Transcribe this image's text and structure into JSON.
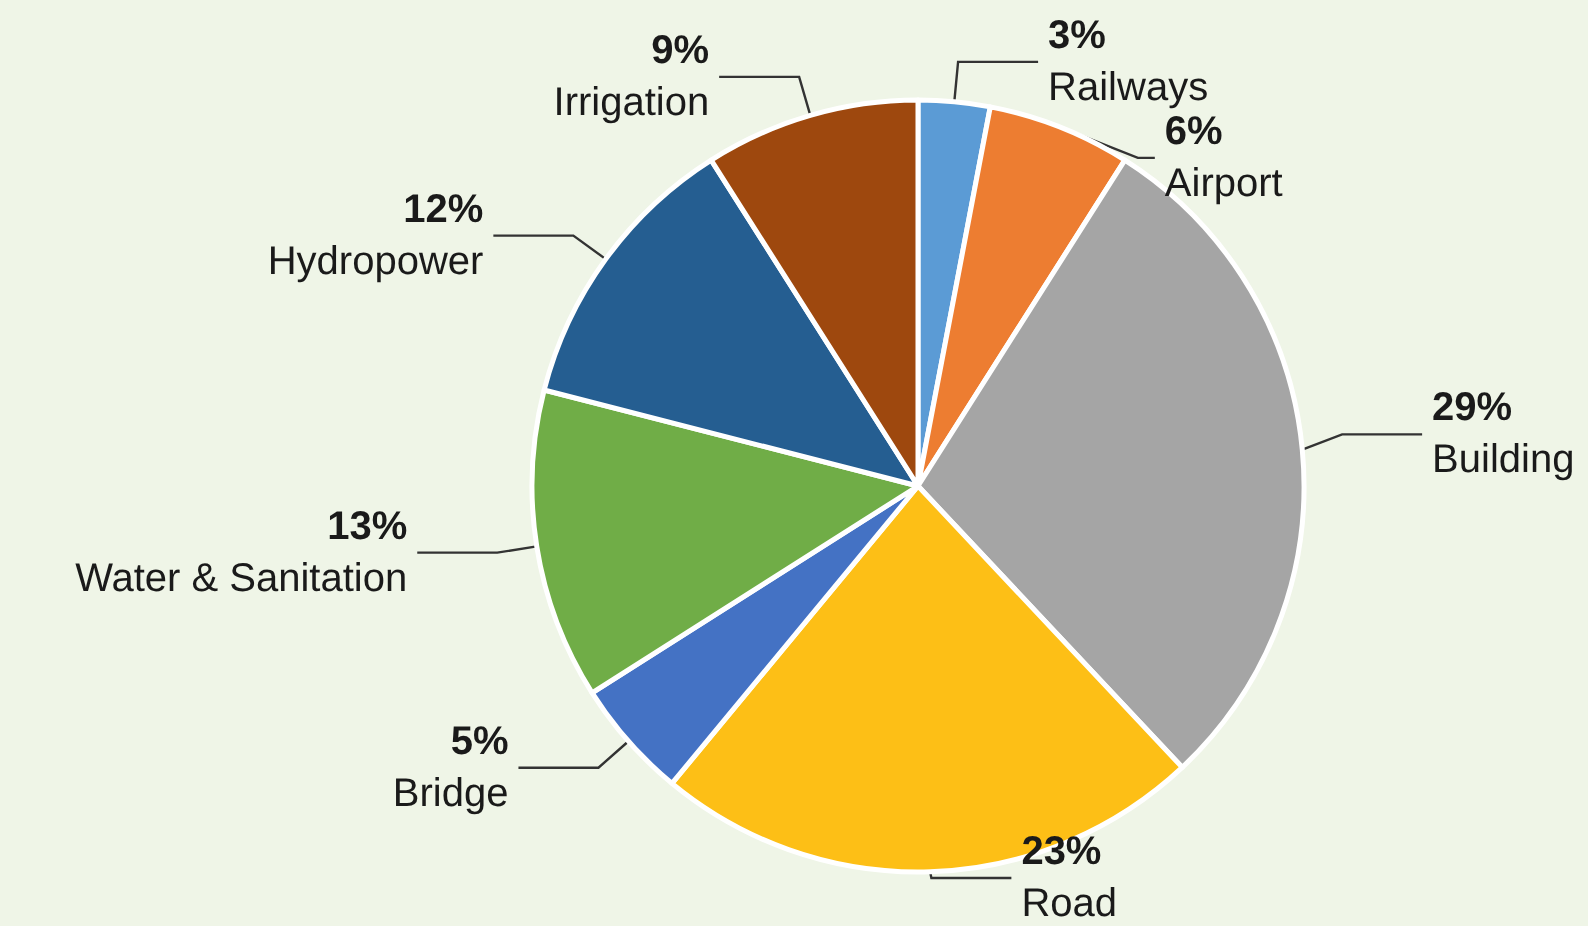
{
  "chart_data": {
    "type": "pie",
    "categories": [
      "Railways",
      "Airport",
      "Building",
      "Road",
      "Bridge",
      "Water & Sanitation",
      "Hydropower",
      "Irrigation"
    ],
    "values": [
      3,
      6,
      29,
      23,
      5,
      13,
      12,
      9
    ],
    "colors": [
      "#5b9bd5",
      "#ed7d31",
      "#a5a5a5",
      "#fdbf16",
      "#4472c4",
      "#70ad47",
      "#255e91",
      "#9e480e"
    ],
    "value_labels": [
      "3%",
      "6%",
      "29%",
      "23%",
      "5%",
      "13%",
      "12%",
      "9%"
    ],
    "legend": false
  }
}
